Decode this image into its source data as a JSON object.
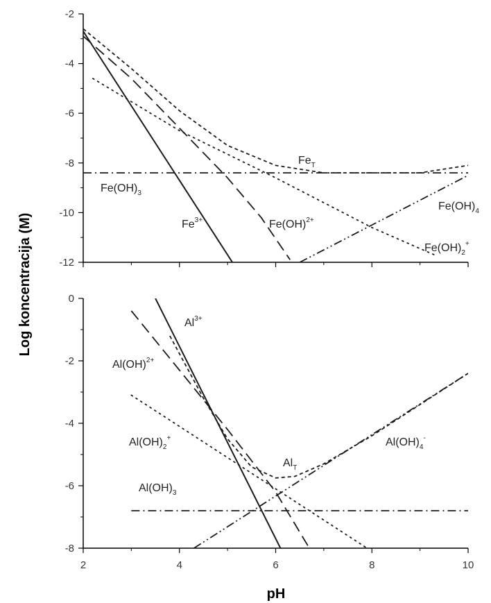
{
  "figure": {
    "ylabel": "Log koncentracija (M)",
    "xlabel": "pH"
  },
  "chart_data": [
    {
      "type": "line",
      "xlim": [
        2,
        10
      ],
      "ylim": [
        -12,
        -2
      ],
      "x_ticks": [
        "2",
        "4",
        "6",
        "8",
        "10"
      ],
      "y_ticks": [
        "-2",
        "-4",
        "-6",
        "-8",
        "-10",
        "-12"
      ],
      "grid": false,
      "series": [
        {
          "id": "fe3",
          "label_main": "Fe",
          "label_sup": "3+",
          "label_sub": "",
          "dash": "solid",
          "points": [
            [
              2,
              -2.7
            ],
            [
              5.1,
              -12
            ]
          ]
        },
        {
          "id": "feoh2",
          "label_main": "Fe(OH)",
          "label_sup": "2+",
          "label_sub": "",
          "dash": "longdash",
          "points": [
            [
              2,
              -2.9
            ],
            [
              3,
              -4.6
            ],
            [
              4,
              -6.6
            ],
            [
              5,
              -8.6
            ],
            [
              5.7,
              -10.2
            ],
            [
              6.3,
              -11.9
            ]
          ]
        },
        {
          "id": "feoh2p",
          "label_main": "Fe(OH)",
          "label_sup": "+",
          "label_sub": "2",
          "dash": "dotted",
          "points": [
            [
              2.2,
              -4.6
            ],
            [
              4,
              -6.7
            ],
            [
              6,
              -8.6
            ],
            [
              7,
              -9.6
            ],
            [
              8,
              -10.6
            ],
            [
              9.3,
              -11.7
            ]
          ]
        },
        {
          "id": "feoh3",
          "label_main": "Fe(OH)",
          "label_sup": "",
          "label_sub": "3",
          "dash": "dashdot",
          "points": [
            [
              2,
              -8.4
            ],
            [
              10,
              -8.4
            ]
          ]
        },
        {
          "id": "feoh4",
          "label_main": "Fe(OH)",
          "label_sup": "",
          "label_sub": "4",
          "dash": "dashdotdot",
          "points": [
            [
              6.5,
              -12
            ],
            [
              10,
              -8.5
            ]
          ]
        },
        {
          "id": "fet",
          "label_main": "Fe",
          "label_sup": "",
          "label_sub": "T",
          "dash": "shortdash",
          "points": [
            [
              2,
              -2.6
            ],
            [
              3,
              -4.2
            ],
            [
              4,
              -5.9
            ],
            [
              5,
              -7.3
            ],
            [
              6,
              -8.1
            ],
            [
              7,
              -8.4
            ],
            [
              8,
              -8.4
            ],
            [
              9,
              -8.4
            ],
            [
              10,
              -8.1
            ]
          ]
        }
      ]
    },
    {
      "type": "line",
      "xlim": [
        2,
        10
      ],
      "ylim": [
        -8,
        0
      ],
      "x_ticks": [
        "2",
        "4",
        "6",
        "8",
        "10"
      ],
      "y_ticks": [
        "0",
        "-2",
        "-4",
        "-6",
        "-8"
      ],
      "grid": false,
      "series": [
        {
          "id": "al3",
          "label_main": "Al",
          "label_sup": "3+",
          "label_sub": "",
          "dash": "solid",
          "points": [
            [
              3.5,
              0
            ],
            [
              6.1,
              -8
            ]
          ]
        },
        {
          "id": "aloh2",
          "label_main": "Al(OH)",
          "label_sup": "2+",
          "label_sub": "",
          "dash": "longdash",
          "points": [
            [
              3,
              -0.4
            ],
            [
              4,
              -2.3
            ],
            [
              5,
              -4.2
            ],
            [
              6,
              -6.2
            ],
            [
              6.7,
              -8
            ]
          ]
        },
        {
          "id": "aloh2p",
          "label_main": "Al(OH)",
          "label_sup": "+",
          "label_sub": "2",
          "dash": "dotted",
          "points": [
            [
              3,
              -3.1
            ],
            [
              4,
              -4.1
            ],
            [
              5,
              -5.1
            ],
            [
              6,
              -6.1
            ],
            [
              7,
              -7.1
            ],
            [
              7.9,
              -8
            ]
          ]
        },
        {
          "id": "aloh3",
          "label_main": "Al(OH)",
          "label_sup": "",
          "label_sub": "3",
          "dash": "dashdot",
          "points": [
            [
              3,
              -6.8
            ],
            [
              10,
              -6.8
            ]
          ]
        },
        {
          "id": "aloh4",
          "label_main": "Al(OH)",
          "label_sup": "-",
          "label_sub": "4",
          "dash": "dashdotdot",
          "points": [
            [
              4.3,
              -8
            ],
            [
              10,
              -2.4
            ]
          ]
        },
        {
          "id": "alt",
          "label_main": "Al",
          "label_sup": "",
          "label_sub": "T",
          "dash": "shortdash",
          "points": [
            [
              3.8,
              -1.2
            ],
            [
              4.5,
              -3.2
            ],
            [
              5,
              -4.5
            ],
            [
              5.5,
              -5.4
            ],
            [
              6,
              -5.75
            ],
            [
              6.4,
              -5.7
            ],
            [
              7,
              -5.3
            ],
            [
              8,
              -4.4
            ],
            [
              9,
              -3.4
            ],
            [
              10,
              -2.4
            ]
          ]
        }
      ]
    }
  ]
}
